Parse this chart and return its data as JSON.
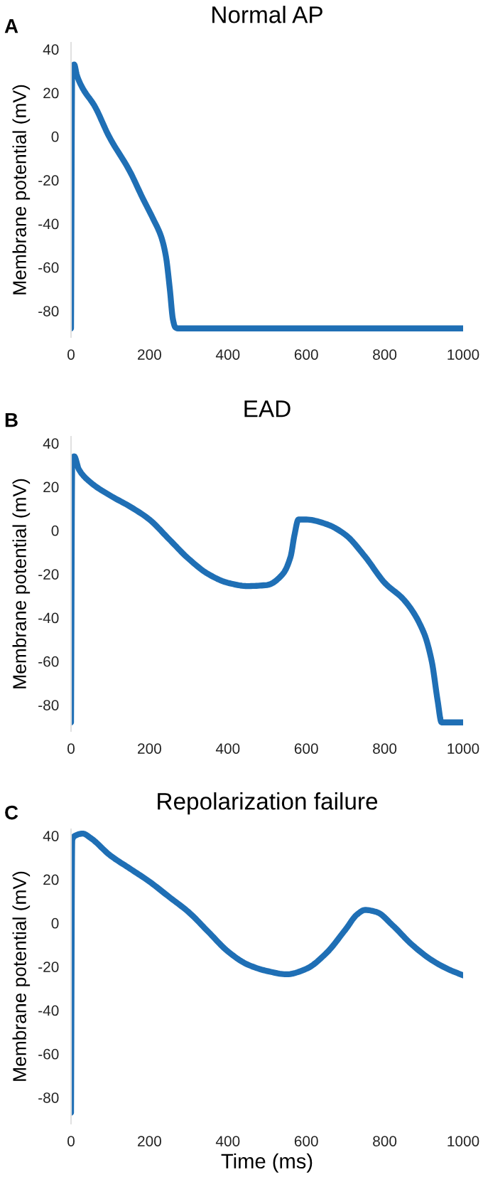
{
  "chart_data": [
    {
      "type": "line",
      "title": "Normal AP",
      "ylabel": "Membrane potential (mV)",
      "annotations": [
        "A"
      ],
      "xlim": [
        0,
        1000
      ],
      "ylim": [
        -92,
        43
      ],
      "xticks": [
        0,
        200,
        400,
        600,
        800,
        1000
      ],
      "yticks": [
        -80,
        -60,
        -40,
        -20,
        0,
        20,
        40
      ],
      "grid": false,
      "line_style": "solid",
      "series": [
        {
          "color": "#1f6fb5",
          "x": [
            0,
            3,
            8,
            15,
            30,
            60,
            97,
            150,
            182,
            210,
            230,
            242,
            252,
            260,
            266,
            272,
            1000
          ],
          "values": [
            -88,
            30,
            33,
            28,
            22,
            14,
            0,
            -16,
            -28,
            -38,
            -46,
            -55,
            -70,
            -84,
            -87.5,
            -88,
            -88
          ]
        }
      ]
    },
    {
      "type": "line",
      "title": "EAD",
      "ylabel": "Membrane potential (mV)",
      "annotations": [
        "B"
      ],
      "xlim": [
        0,
        1000
      ],
      "ylim": [
        -92,
        43
      ],
      "xticks": [
        0,
        200,
        400,
        600,
        800,
        1000
      ],
      "yticks": [
        -80,
        -60,
        -40,
        -20,
        0,
        20,
        40
      ],
      "grid": false,
      "line_style": "solid",
      "series": [
        {
          "color": "#1f6fb5",
          "x": [
            0,
            3,
            8,
            20,
            50,
            100,
            150,
            200,
            250,
            300,
            350,
            400,
            450,
            500,
            540,
            560,
            570,
            580,
            600,
            650,
            700,
            750,
            800,
            850,
            900,
            920,
            935,
            945,
            1000
          ],
          "values": [
            -88,
            30,
            34,
            28,
            22,
            16,
            11,
            5,
            -4,
            -13,
            -20,
            -24,
            -25.5,
            -25,
            -20,
            -12,
            -2,
            5,
            5,
            3,
            -2,
            -12,
            -24,
            -32,
            -47,
            -60,
            -78,
            -88,
            -88
          ]
        }
      ]
    },
    {
      "type": "line",
      "title": "Repolarization failure",
      "xlabel": "Time (ms)",
      "ylabel": "Membrane potential (mV)",
      "annotations": [
        "C"
      ],
      "xlim": [
        0,
        1000
      ],
      "ylim": [
        -92,
        43
      ],
      "xticks": [
        0,
        200,
        400,
        600,
        800,
        1000
      ],
      "yticks": [
        -80,
        -60,
        -40,
        -20,
        0,
        20,
        40
      ],
      "grid": false,
      "line_style": "solid",
      "series": [
        {
          "color": "#1f6fb5",
          "x": [
            0,
            3,
            10,
            30,
            50,
            100,
            150,
            200,
            250,
            300,
            350,
            400,
            450,
            500,
            550,
            600,
            650,
            700,
            730,
            750,
            780,
            820,
            870,
            920,
            960,
            1000
          ],
          "values": [
            -87,
            38,
            40,
            41,
            39,
            31,
            25,
            19,
            12,
            5,
            -4,
            -13,
            -19,
            -22,
            -23.5,
            -21,
            -14,
            -3,
            4,
            6,
            5,
            -1,
            -10,
            -17,
            -21,
            -24
          ]
        }
      ]
    }
  ]
}
